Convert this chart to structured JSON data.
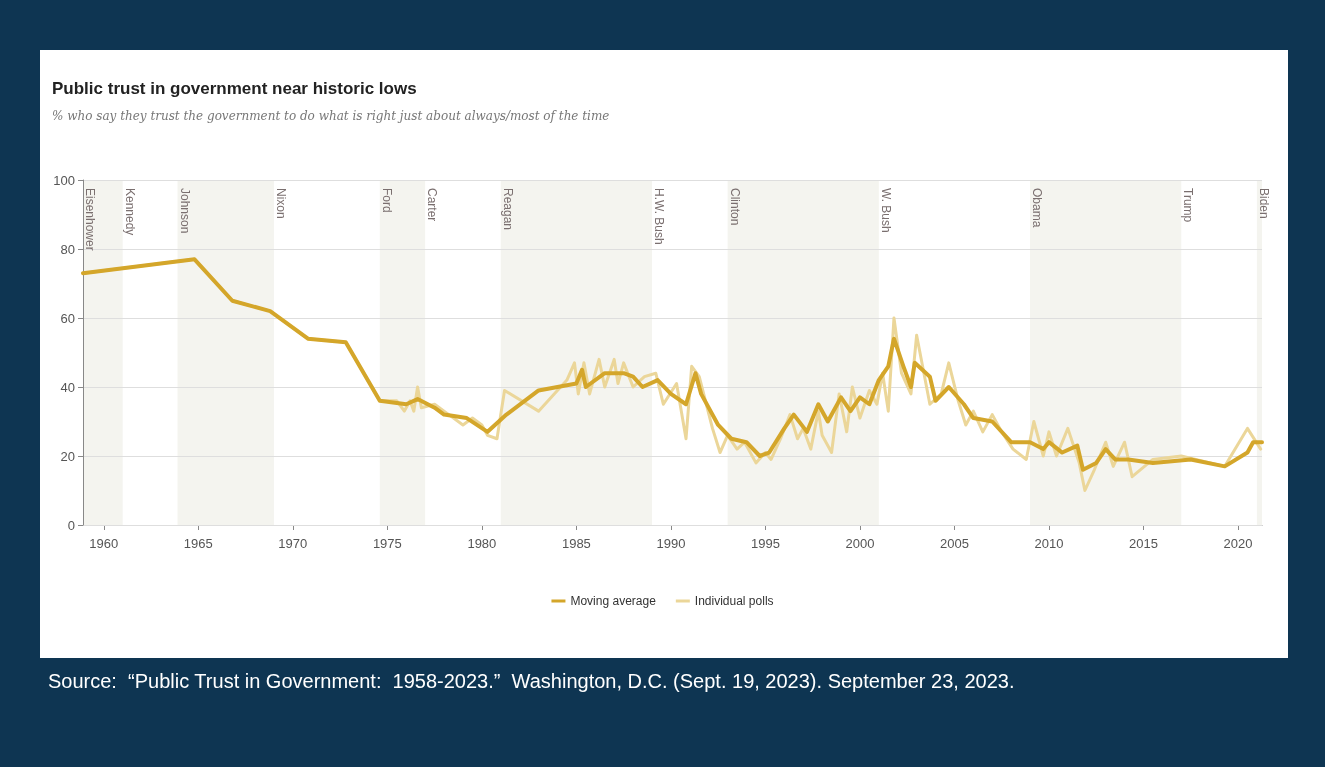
{
  "chart_data": {
    "type": "line",
    "title": "Public trust in government near historic lows",
    "subtitle": "% who say they trust the government to do what is right just about always/most of the time",
    "xlim": [
      1958.9,
      2021.27
    ],
    "xticks": [
      1960,
      1965,
      1970,
      1975,
      1980,
      1985,
      1990,
      1995,
      2000,
      2005,
      2010,
      2015,
      2020
    ],
    "ylim": [
      0,
      100
    ],
    "yticks": [
      0,
      20,
      40,
      60,
      80,
      100
    ],
    "grid": "y",
    "legend": "bottom",
    "line_style": "solid",
    "series": [
      {
        "name": "Moving average",
        "color": "#d4a62a",
        "x": [
          1958.9,
          1964.8,
          1966.8,
          1968.8,
          1970.8,
          1972.8,
          1974.6,
          1976,
          1976.6,
          1977.5,
          1978,
          1979.2,
          1980.3,
          1981.3,
          1983,
          1985,
          1985.3,
          1985.5,
          1986.5,
          1987.5,
          1988,
          1988.5,
          1989.3,
          1990,
          1990.8,
          1991.3,
          1991.6,
          1992.5,
          1993.2,
          1994,
          1994.7,
          1995.2,
          1996,
          1996.5,
          1997.2,
          1997.8,
          1998.3,
          1999,
          1999.5,
          2000,
          2000.5,
          2001,
          2001.5,
          2001.8,
          2002.3,
          2002.7,
          2002.9,
          2003.7,
          2004,
          2004.7,
          2005.5,
          2006,
          2007,
          2008,
          2009,
          2009.7,
          2010,
          2010.7,
          2011.5,
          2011.8,
          2012.5,
          2013,
          2013.5,
          2014.2,
          2015.5,
          2017.5,
          2019.3,
          2020.5,
          2020.8,
          2021.27
        ],
        "values": [
          73,
          77,
          65,
          62,
          54,
          53,
          36,
          35,
          36.5,
          34,
          32,
          31,
          27,
          32,
          39,
          41,
          45,
          40,
          44,
          44,
          43,
          40,
          42,
          38,
          35,
          44,
          38,
          29,
          25,
          24,
          20,
          21,
          28,
          32,
          27,
          35,
          30,
          37,
          33,
          37,
          35,
          42,
          46,
          54,
          46,
          40,
          47,
          43,
          36,
          40,
          35,
          31,
          30,
          24,
          24,
          22,
          24,
          21,
          23,
          16,
          18,
          22,
          19,
          19,
          18,
          19,
          17,
          21,
          24,
          24
        ]
      },
      {
        "name": "Individual polls",
        "color": "#ebd699",
        "x": [
          1958.9,
          1964.8,
          1966.8,
          1968.8,
          1970.8,
          1972.8,
          1974.6,
          1975.5,
          1975.9,
          1976.2,
          1976.4,
          1976.6,
          1976.8,
          1977.5,
          1978,
          1979,
          1979.5,
          1980,
          1980.3,
          1980.8,
          1981.2,
          1983,
          1984.5,
          1984.9,
          1985.1,
          1985.4,
          1985.7,
          1986.2,
          1986.5,
          1987,
          1987.2,
          1987.5,
          1988,
          1988.6,
          1989.2,
          1989.6,
          1990.3,
          1990.8,
          1991.1,
          1991.5,
          1992.2,
          1992.6,
          1993,
          1993.5,
          1993.9,
          1994.5,
          1995,
          1995.3,
          1995.8,
          1996.3,
          1996.7,
          1997,
          1997.4,
          1997.8,
          1998,
          1998.5,
          1998.9,
          1999.3,
          1999.6,
          2000,
          2000.5,
          2000.9,
          2001.2,
          2001.5,
          2001.8,
          2002.2,
          2002.7,
          2003,
          2003.7,
          2004.3,
          2004.7,
          2005.2,
          2005.6,
          2006,
          2006.5,
          2007,
          2007.5,
          2008.1,
          2008.8,
          2009.2,
          2009.7,
          2010,
          2010.4,
          2011,
          2011.6,
          2011.9,
          2012.4,
          2013,
          2013.4,
          2014,
          2014.4,
          2015.5,
          2017,
          2019.3,
          2020.5,
          2021.2
        ],
        "values": [
          73,
          77,
          65,
          62,
          54,
          53,
          36,
          36,
          33,
          36,
          33,
          40,
          34,
          35,
          33,
          29,
          31,
          29,
          26,
          25,
          39,
          33,
          42,
          47,
          38,
          47,
          38,
          48,
          40,
          48,
          41,
          47,
          40,
          43,
          44,
          35,
          41,
          25,
          46,
          43,
          28,
          21,
          26,
          22,
          24,
          18,
          21,
          19,
          25,
          32,
          25,
          28,
          22,
          33,
          26,
          21,
          38,
          27,
          40,
          31,
          39,
          35,
          44,
          33,
          60,
          44,
          38,
          55,
          35,
          38,
          47,
          36,
          29,
          33,
          27,
          32,
          27,
          22,
          19,
          30,
          20,
          27,
          20,
          28,
          18,
          10,
          16,
          24,
          17,
          24,
          14,
          19,
          20,
          17,
          28,
          22
        ]
      }
    ],
    "bands": [
      {
        "axis": "x",
        "from": 1958.9,
        "to": 1961,
        "label": "Eisenhower",
        "color": "#f4f4ef"
      },
      {
        "axis": "x",
        "from": 1963.9,
        "to": 1969,
        "label": "Johnson",
        "color": "#f4f4ef"
      },
      {
        "axis": "x",
        "from": 1974.6,
        "to": 1977,
        "label": "Ford",
        "color": "#f4f4ef"
      },
      {
        "axis": "x",
        "from": 1981,
        "to": 1989,
        "label": "Reagan",
        "color": "#f4f4ef"
      },
      {
        "axis": "x",
        "from": 1993,
        "to": 2001,
        "label": "Clinton",
        "color": "#f4f4ef"
      },
      {
        "axis": "x",
        "from": 2009,
        "to": 2017,
        "label": "Obama",
        "color": "#f4f4ef"
      },
      {
        "axis": "x",
        "from": 2021,
        "to": 2021.27,
        "label": "Biden",
        "color": "#f4f4ef"
      }
    ],
    "annotations": [
      {
        "text": "Kennedy",
        "x": 1961,
        "y": 100
      },
      {
        "text": "Nixon",
        "x": 1969,
        "y": 100
      },
      {
        "text": "Carter",
        "x": 1977,
        "y": 100
      },
      {
        "text": "H.W. Bush",
        "x": 1989,
        "y": 100
      },
      {
        "text": "W. Bush",
        "x": 2001,
        "y": 100
      },
      {
        "text": "Trump",
        "x": 2017,
        "y": 100
      },
      "Source:  “Public Trust in Government:  1958-2023.”  Washington, D.C. (Sept. 19, 2023). September 23, 2023."
    ]
  }
}
